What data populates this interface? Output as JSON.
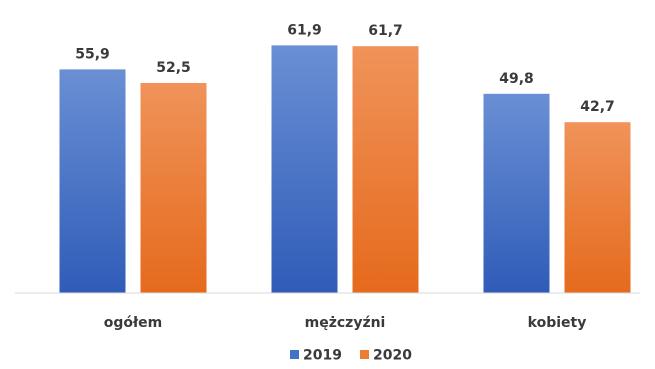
{
  "chart_data": {
    "type": "bar",
    "categories": [
      "ogółem",
      "mężczyźni",
      "kobiety"
    ],
    "series": [
      {
        "name": "2019",
        "values": [
          55.9,
          61.9,
          49.8
        ],
        "value_labels": [
          "55,9",
          "61,9",
          "49,8"
        ],
        "color": "#4472C4"
      },
      {
        "name": "2020",
        "values": [
          52.5,
          61.7,
          42.7
        ],
        "value_labels": [
          "52,5",
          "61,7",
          "42,7"
        ],
        "color": "#ED7D31"
      }
    ],
    "ylim": [
      0,
      70
    ],
    "grid": false,
    "legend_position": "bottom"
  }
}
